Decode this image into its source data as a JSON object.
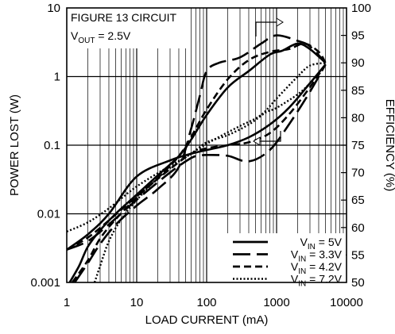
{
  "chart_data": {
    "type": "line",
    "annotation": {
      "line1": "FIGURE 13 CIRCUIT",
      "line2_prefix": "V",
      "line2_sub": "OUT",
      "line2_suffix": " = 2.5V"
    },
    "xlabel": "LOAD CURRENT (mA)",
    "ylabel_left": "POWER LOST (W)",
    "ylabel_right": "EFFICIENCY (%)",
    "x_scale": "log",
    "xlim": [
      1,
      10000
    ],
    "ylim_left": [
      0.001,
      10
    ],
    "ylim_right": [
      50,
      100
    ],
    "grid": true,
    "x_ticks": [
      {
        "v": 1,
        "label": "1"
      },
      {
        "v": 10,
        "label": "10"
      },
      {
        "v": 100,
        "label": "100"
      },
      {
        "v": 1000,
        "label": "1000"
      },
      {
        "v": 10000,
        "label": "10000"
      }
    ],
    "y_left_ticks": [
      {
        "v": 0.001,
        "label": "0.001"
      },
      {
        "v": 0.01,
        "label": "0.01"
      },
      {
        "v": 0.1,
        "label": "0.1"
      },
      {
        "v": 1,
        "label": "1"
      },
      {
        "v": 10,
        "label": "10"
      }
    ],
    "y_right_ticks": [
      {
        "v": 50,
        "label": "50"
      },
      {
        "v": 55,
        "label": "55"
      },
      {
        "v": 60,
        "label": "60"
      },
      {
        "v": 65,
        "label": "65"
      },
      {
        "v": 70,
        "label": "70"
      },
      {
        "v": 75,
        "label": "75"
      },
      {
        "v": 80,
        "label": "80"
      },
      {
        "v": 85,
        "label": "85"
      },
      {
        "v": 90,
        "label": "90"
      },
      {
        "v": 95,
        "label": "95"
      },
      {
        "v": 100,
        "label": "100"
      }
    ],
    "legend": {
      "position": "bottom-right",
      "entries": [
        {
          "prefix": "V",
          "sub": "IN",
          "suffix": " = 5V",
          "style": "solid"
        },
        {
          "prefix": "V",
          "sub": "IN",
          "suffix": " = 3.3V",
          "style": "longdash"
        },
        {
          "prefix": "V",
          "sub": "IN",
          "suffix": " = 4.2V",
          "style": "dash"
        },
        {
          "prefix": "V",
          "sub": "IN",
          "suffix": " = 7.2V",
          "style": "dot"
        }
      ]
    },
    "series": [
      {
        "group": "power_lost",
        "axis": "left",
        "style": "solid",
        "x": [
          1,
          2,
          4,
          10,
          30,
          60,
          100,
          200,
          400,
          800,
          1500,
          3000,
          5000
        ],
        "y": [
          0.003,
          0.005,
          0.01,
          0.035,
          0.06,
          0.075,
          0.085,
          0.1,
          0.13,
          0.2,
          0.35,
          0.8,
          1.5
        ]
      },
      {
        "group": "power_lost",
        "axis": "left",
        "style": "longdash",
        "x": [
          1,
          2,
          4,
          10,
          30,
          60,
          80,
          100,
          200,
          400,
          800,
          1500,
          3000,
          5000
        ],
        "y": [
          0.003,
          0.004,
          0.007,
          0.016,
          0.04,
          0.065,
          0.07,
          0.072,
          0.07,
          0.058,
          0.085,
          0.2,
          0.6,
          1.5
        ]
      },
      {
        "group": "power_lost",
        "axis": "left",
        "style": "dash",
        "x": [
          1,
          2,
          4,
          10,
          30,
          60,
          100,
          200,
          400,
          800,
          1500,
          3000,
          5000
        ],
        "y": [
          0.003,
          0.0045,
          0.008,
          0.018,
          0.045,
          0.075,
          0.09,
          0.1,
          0.11,
          0.15,
          0.28,
          0.7,
          1.5
        ]
      },
      {
        "group": "power_lost",
        "axis": "left",
        "style": "dot",
        "x": [
          1,
          2,
          4,
          10,
          30,
          60,
          100,
          200,
          400,
          700,
          1000,
          2000,
          3000,
          5000
        ],
        "y": [
          0.0055,
          0.0075,
          0.012,
          0.025,
          0.05,
          0.075,
          0.11,
          0.14,
          0.2,
          0.3,
          0.35,
          0.55,
          0.8,
          1.5
        ]
      },
      {
        "group": "efficiency",
        "axis": "right",
        "style": "solid",
        "x": [
          1.1,
          1.5,
          2,
          3,
          5,
          10,
          20,
          40,
          60,
          100,
          200,
          400,
          800,
          1200,
          2000,
          3000,
          5000
        ],
        "y": [
          50,
          53,
          56.5,
          59.5,
          62.5,
          66,
          69.5,
          73,
          76,
          80.5,
          85.5,
          88.5,
          91.5,
          92.2,
          93.5,
          92.5,
          90
        ]
      },
      {
        "group": "efficiency",
        "axis": "right",
        "style": "longdash",
        "x": [
          1.3,
          2,
          3,
          5,
          10,
          20,
          40,
          60,
          80,
          100,
          150,
          300,
          600,
          1000,
          2000,
          3000,
          5000
        ],
        "y": [
          50,
          53.5,
          57,
          60.5,
          64,
          67,
          71,
          78,
          84,
          88.5,
          90,
          91,
          93.5,
          95,
          94,
          93,
          90
        ]
      },
      {
        "group": "efficiency",
        "axis": "right",
        "style": "dash",
        "x": [
          1.2,
          2,
          3,
          5,
          10,
          20,
          40,
          60,
          100,
          200,
          400,
          800,
          1500,
          2500,
          4000,
          5000
        ],
        "y": [
          50,
          54,
          58,
          61.5,
          65.5,
          69,
          73,
          76.5,
          81.5,
          87,
          90.5,
          92,
          92.5,
          93.5,
          92,
          90
        ]
      },
      {
        "group": "efficiency",
        "axis": "right",
        "style": "dot",
        "x": [
          2.5,
          3,
          4,
          6,
          10,
          20,
          40,
          80,
          150,
          300,
          600,
          1000,
          2000,
          3000,
          5000
        ],
        "y": [
          50,
          53,
          57.5,
          61.5,
          65,
          69,
          72,
          74.5,
          76.5,
          78.5,
          80.5,
          83.5,
          87.5,
          89.5,
          90
        ]
      }
    ]
  }
}
